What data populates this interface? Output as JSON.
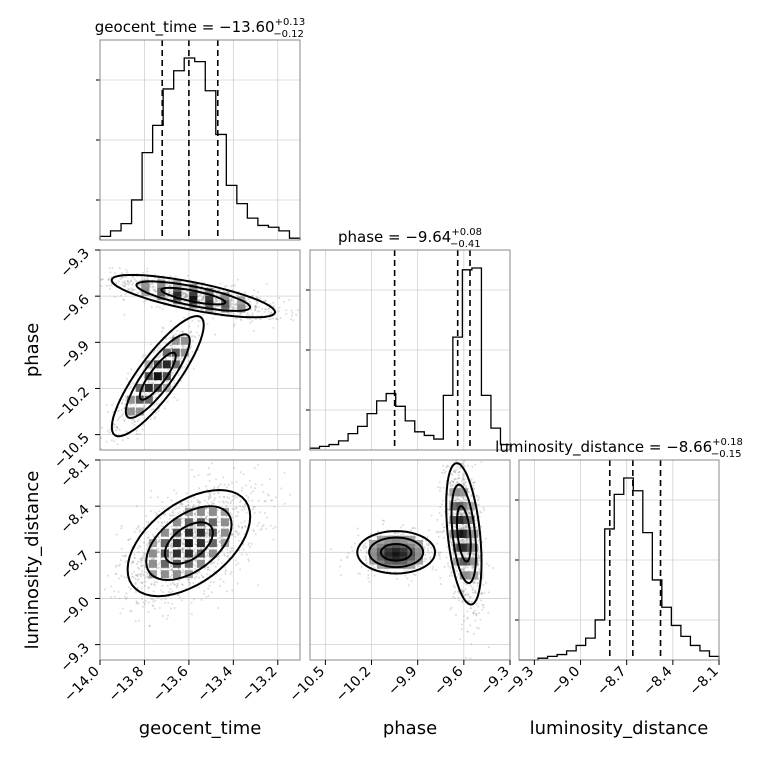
{
  "chart_data": {
    "type": "corner",
    "parameters": [
      {
        "name": "geocent_time",
        "title_prefix": "geocent_time = ",
        "median": "−13.60",
        "plus": "+0.13",
        "minus": "−0.12",
        "quantiles": [
          -13.72,
          -13.6,
          -13.47
        ],
        "range": [
          -14.0,
          -13.1
        ],
        "ticks": [
          {
            "value": -14.0,
            "label": "−14.0"
          },
          {
            "value": -13.8,
            "label": "−13.8"
          },
          {
            "value": -13.6,
            "label": "−13.6"
          },
          {
            "value": -13.4,
            "label": "−13.4"
          },
          {
            "value": -13.2,
            "label": "−13.2"
          }
        ],
        "histogram": [
          0.02,
          0.05,
          0.09,
          0.22,
          0.48,
          0.63,
          0.83,
          0.93,
          1.0,
          0.98,
          0.82,
          0.58,
          0.3,
          0.2,
          0.12,
          0.08,
          0.07,
          0.05,
          0.01
        ]
      },
      {
        "name": "phase",
        "title_prefix": "phase = ",
        "median": "−9.64",
        "plus": "+0.08",
        "minus": "−0.41",
        "quantiles": [
          -10.05,
          -9.64,
          -9.56
        ],
        "range": [
          -10.6,
          -9.3
        ],
        "ticks": [
          {
            "value": -10.5,
            "label": "−10.5"
          },
          {
            "value": -10.2,
            "label": "−10.2"
          },
          {
            "value": -9.9,
            "label": "−9.9"
          },
          {
            "value": -9.6,
            "label": "−9.6"
          },
          {
            "value": -9.3,
            "label": "−9.3"
          }
        ],
        "histogram": [
          0.01,
          0.02,
          0.03,
          0.05,
          0.09,
          0.13,
          0.2,
          0.27,
          0.31,
          0.24,
          0.16,
          0.1,
          0.08,
          0.06,
          0.3,
          0.62,
          0.99,
          1.0,
          0.3,
          0.12,
          0.03
        ]
      },
      {
        "name": "luminosity_distance",
        "title_prefix": "luminosity_distance = ",
        "median": "−8.66",
        "plus": "+0.18",
        "minus": "−0.15",
        "quantiles": [
          -8.81,
          -8.66,
          -8.48
        ],
        "range": [
          -9.4,
          -8.1
        ],
        "ticks": [
          {
            "value": -9.3,
            "label": "−9.3"
          },
          {
            "value": -9.0,
            "label": "−9.0"
          },
          {
            "value": -8.7,
            "label": "−8.7"
          },
          {
            "value": -8.4,
            "label": "−8.4"
          },
          {
            "value": -8.1,
            "label": "−8.1"
          }
        ],
        "histogram": [
          0.0,
          0.0,
          0.01,
          0.02,
          0.03,
          0.05,
          0.08,
          0.12,
          0.22,
          0.72,
          0.91,
          1.0,
          0.93,
          0.7,
          0.44,
          0.29,
          0.19,
          0.13,
          0.08,
          0.05,
          0.02
        ]
      }
    ],
    "pairs": [
      {
        "x": "geocent_time",
        "y": "phase",
        "clusters": [
          {
            "center": [
              -13.58,
              -9.6
            ],
            "spread": [
              0.16,
              0.06
            ],
            "rho": -0.75,
            "weight": 0.65
          },
          {
            "center": [
              -13.74,
              -10.12
            ],
            "spread": [
              0.09,
              0.17
            ],
            "rho": 0.85,
            "weight": 0.35
          }
        ]
      },
      {
        "x": "geocent_time",
        "y": "luminosity_distance",
        "clusters": [
          {
            "center": [
              -13.6,
              -8.64
            ],
            "spread": [
              0.12,
              0.15
            ],
            "rho": 0.5,
            "weight": 1.0
          }
        ]
      },
      {
        "x": "phase",
        "y": "luminosity_distance",
        "clusters": [
          {
            "center": [
              -9.6,
              -8.58
            ],
            "spread": [
              0.05,
              0.2
            ],
            "rho": -0.4,
            "weight": 0.7
          },
          {
            "center": [
              -10.04,
              -8.7
            ],
            "spread": [
              0.11,
              0.06
            ],
            "rho": 0.0,
            "weight": 0.3
          }
        ]
      }
    ],
    "grid": true
  }
}
